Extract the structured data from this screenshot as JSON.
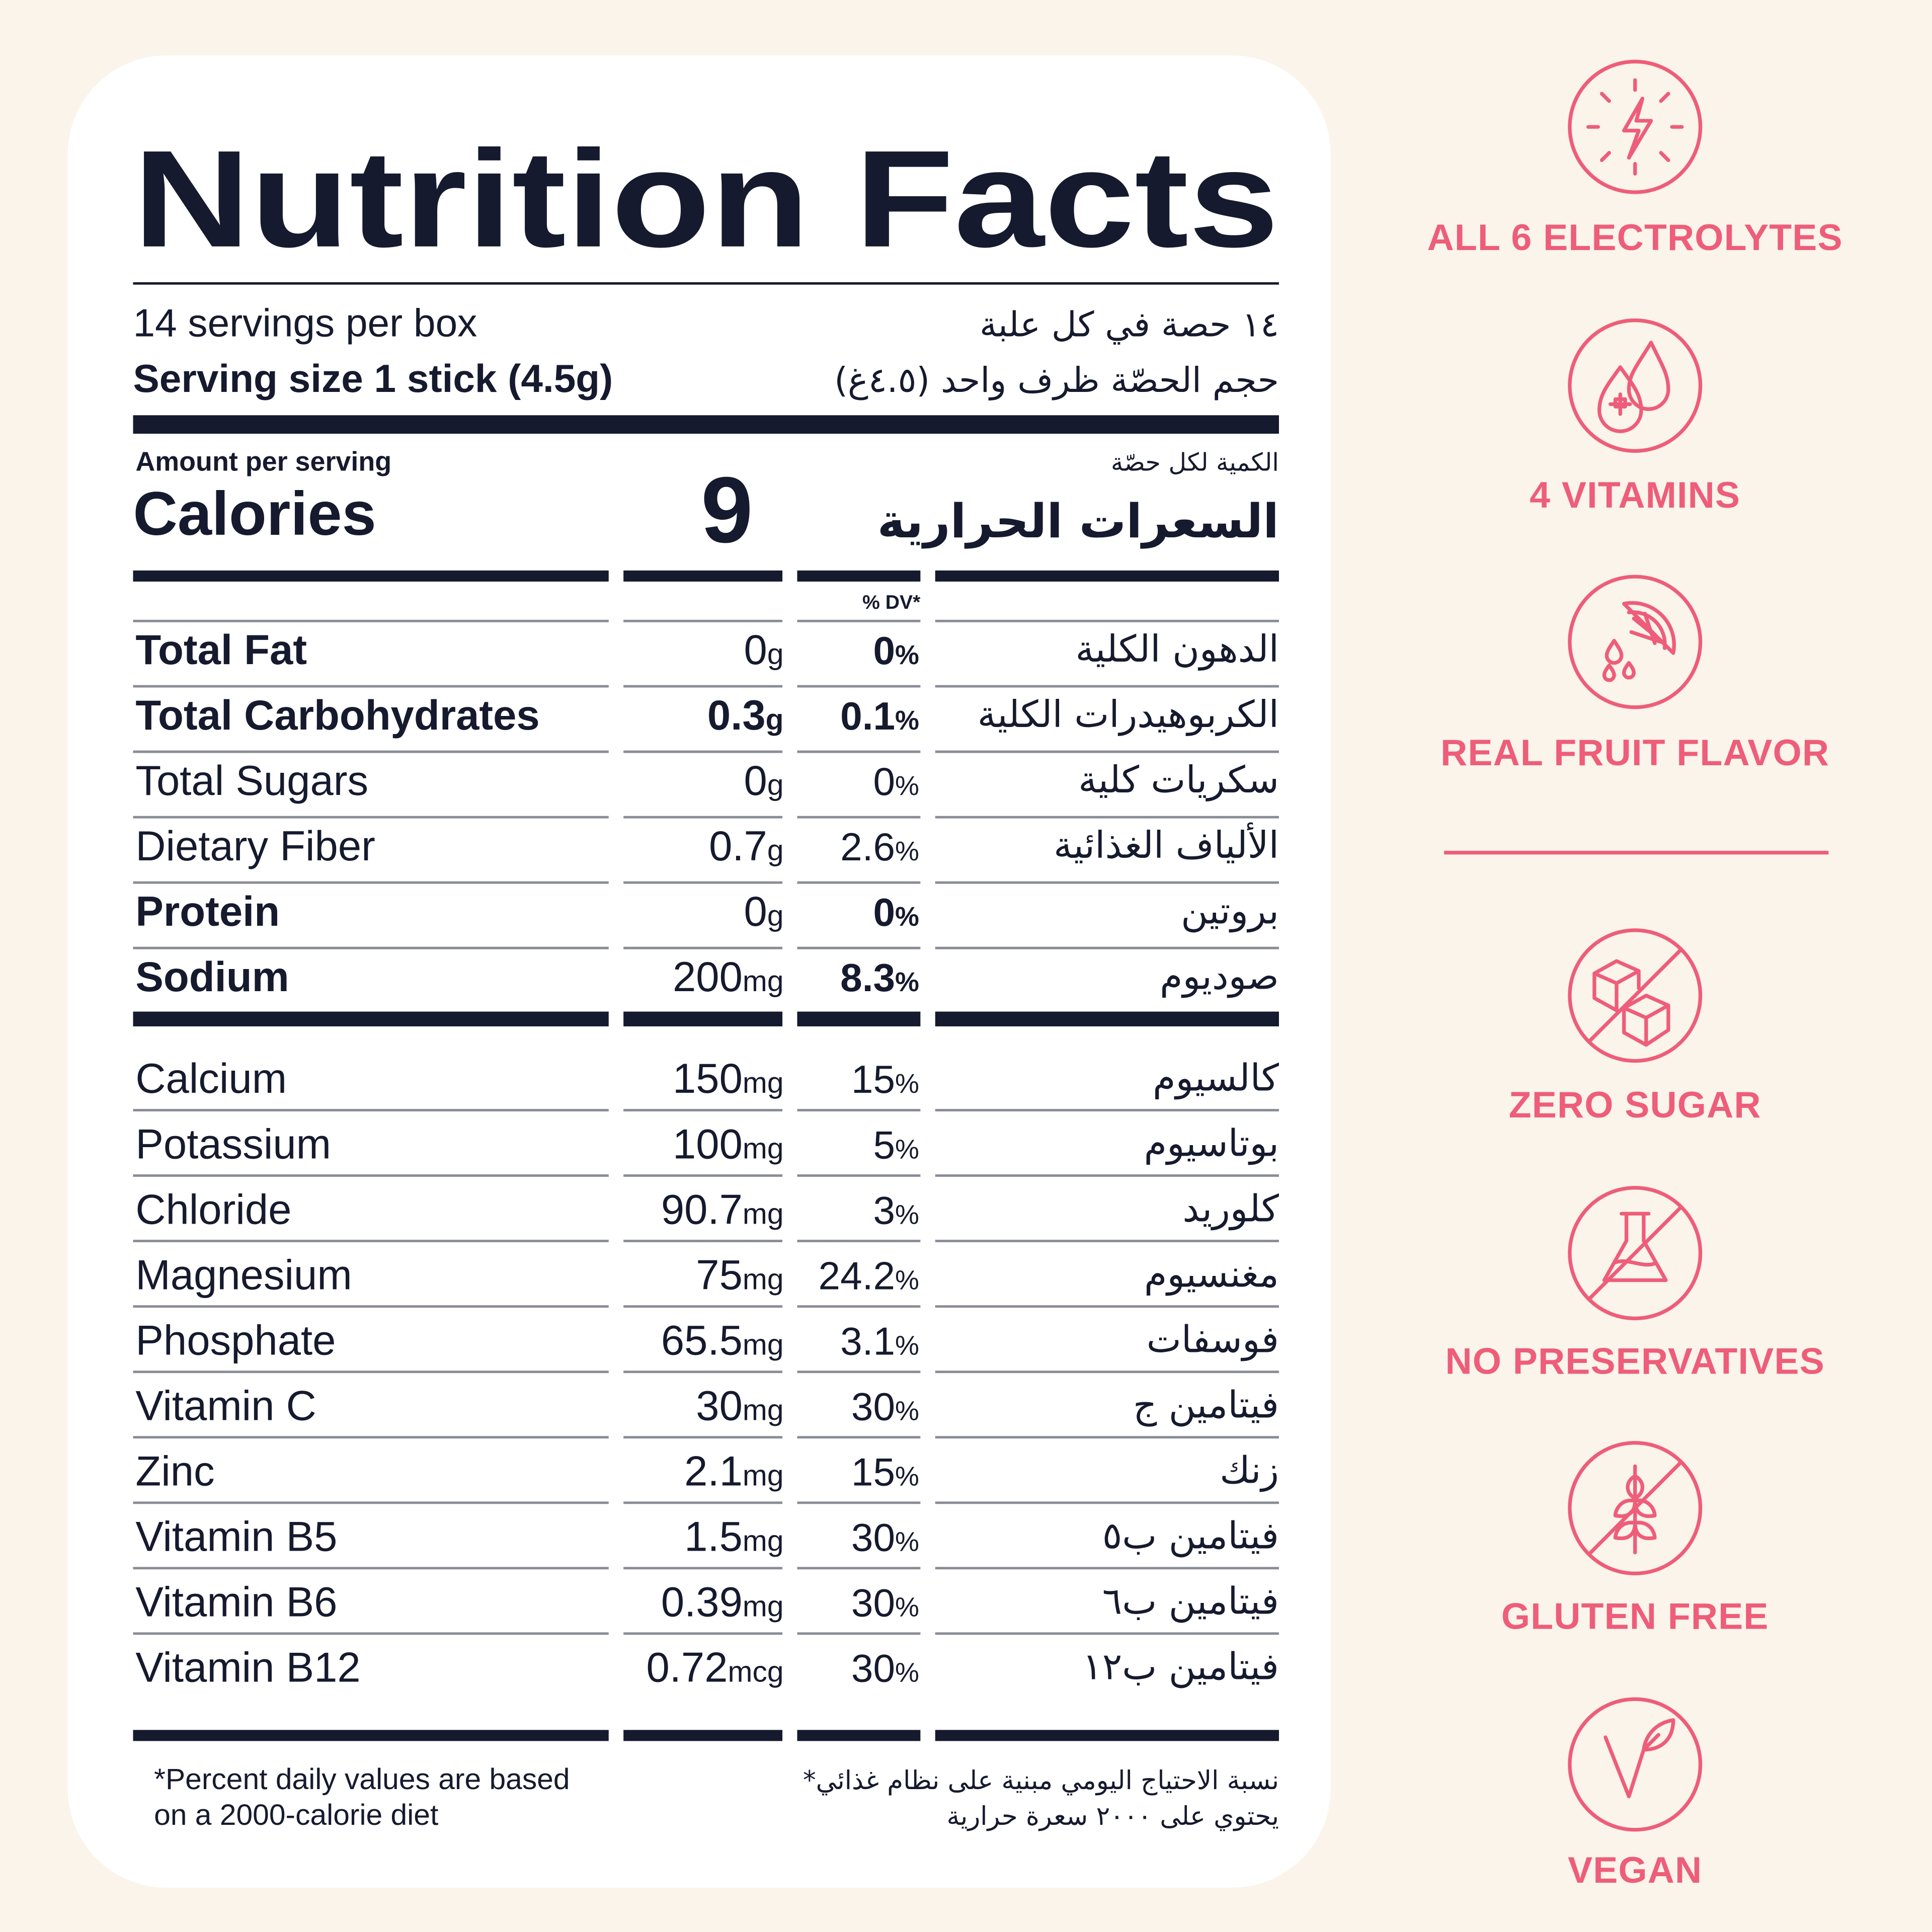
{
  "title": "Nutrition Facts",
  "servings": {
    "en": "14 servings per box",
    "ar": "١٤ حصة في كل علبة"
  },
  "serving_size": {
    "en": "Serving size 1 stick (4.5g)",
    "ar": "حجم الحصّة  ظرف واحد (٤.٥غ)"
  },
  "amount_per_serving": {
    "en": "Amount per serving",
    "ar": "الكمية لكل حصّة"
  },
  "calories": {
    "en": "Calories",
    "value": "9",
    "ar": "السعرات الحرارية"
  },
  "dv_header": "% DV*",
  "nutrients": [
    {
      "name": "Total Fat",
      "amount": "0",
      "unit": "g",
      "dv": "0",
      "dv_unit": "%",
      "ar": "الدهون الكلية"
    },
    {
      "name": "Total Carbohydrates",
      "amount": "0.3",
      "unit": "g",
      "dv": "0.1",
      "dv_unit": "%",
      "ar": "الكربوهيدرات الكلية"
    },
    {
      "name": "Total Sugars",
      "amount": "0",
      "unit": "g",
      "dv": "0",
      "dv_unit": "%",
      "ar": "سكريات كلية"
    },
    {
      "name": "Dietary Fiber",
      "amount": "0.7",
      "unit": "g",
      "dv": "2.6",
      "dv_unit": "%",
      "ar": "الألياف الغذائية"
    },
    {
      "name": "Protein",
      "amount": "0",
      "unit": "g",
      "dv": "0",
      "dv_unit": "%",
      "ar": "بروتين"
    },
    {
      "name": "Sodium",
      "amount": "200",
      "unit": "mg",
      "dv": "8.3",
      "dv_unit": "%",
      "ar": "صوديوم"
    }
  ],
  "minerals": [
    {
      "name": "Calcium",
      "amount": "150",
      "unit": "mg",
      "dv": "15",
      "dv_unit": "%",
      "ar": "كالسيوم"
    },
    {
      "name": "Potassium",
      "amount": "100",
      "unit": "mg",
      "dv": "5",
      "dv_unit": "%",
      "ar": "بوتاسيوم"
    },
    {
      "name": "Chloride",
      "amount": "90.7",
      "unit": "mg",
      "dv": "3",
      "dv_unit": "%",
      "ar": "كلوريد"
    },
    {
      "name": "Magnesium",
      "amount": "75",
      "unit": "mg",
      "dv": "24.2",
      "dv_unit": "%",
      "ar": "مغنسيوم"
    },
    {
      "name": "Phosphate",
      "amount": "65.5",
      "unit": "mg",
      "dv": "3.1",
      "dv_unit": "%",
      "ar": "فوسفات"
    },
    {
      "name": "Vitamin C",
      "amount": "30",
      "unit": "mg",
      "dv": "30",
      "dv_unit": "%",
      "ar": "فيتامين ج"
    },
    {
      "name": "Zinc",
      "amount": "2.1",
      "unit": "mg",
      "dv": "15",
      "dv_unit": "%",
      "ar": "زنك"
    },
    {
      "name": "Vitamin B5",
      "amount": "1.5",
      "unit": "mg",
      "dv": "30",
      "dv_unit": "%",
      "ar": "فيتامين ب٥"
    },
    {
      "name": "Vitamin B6",
      "amount": "0.39",
      "unit": "mg",
      "dv": "30",
      "dv_unit": "%",
      "ar": "فيتامين ب٦"
    },
    {
      "name": "Vitamin B12",
      "amount": "0.72",
      "unit": "mcg",
      "dv": "30",
      "dv_unit": "%",
      "ar": "فيتامين ب١٢"
    }
  ],
  "footnote": {
    "en": [
      "*Percent daily values are based",
      "on a 2000-calorie diet"
    ],
    "ar": [
      "*نسبة الاحتياج اليومي مبنية على نظام غذائي",
      "يحتوي على ٢٠٠٠ سعرة حرارية"
    ]
  },
  "badges": [
    "ALL 6 ELECTROLYTES",
    "4 VITAMINS",
    "REAL FRUIT FLAVOR",
    "ZERO SUGAR",
    "NO PRESERVATIVES",
    "GLUTEN FREE",
    "VEGAN"
  ]
}
